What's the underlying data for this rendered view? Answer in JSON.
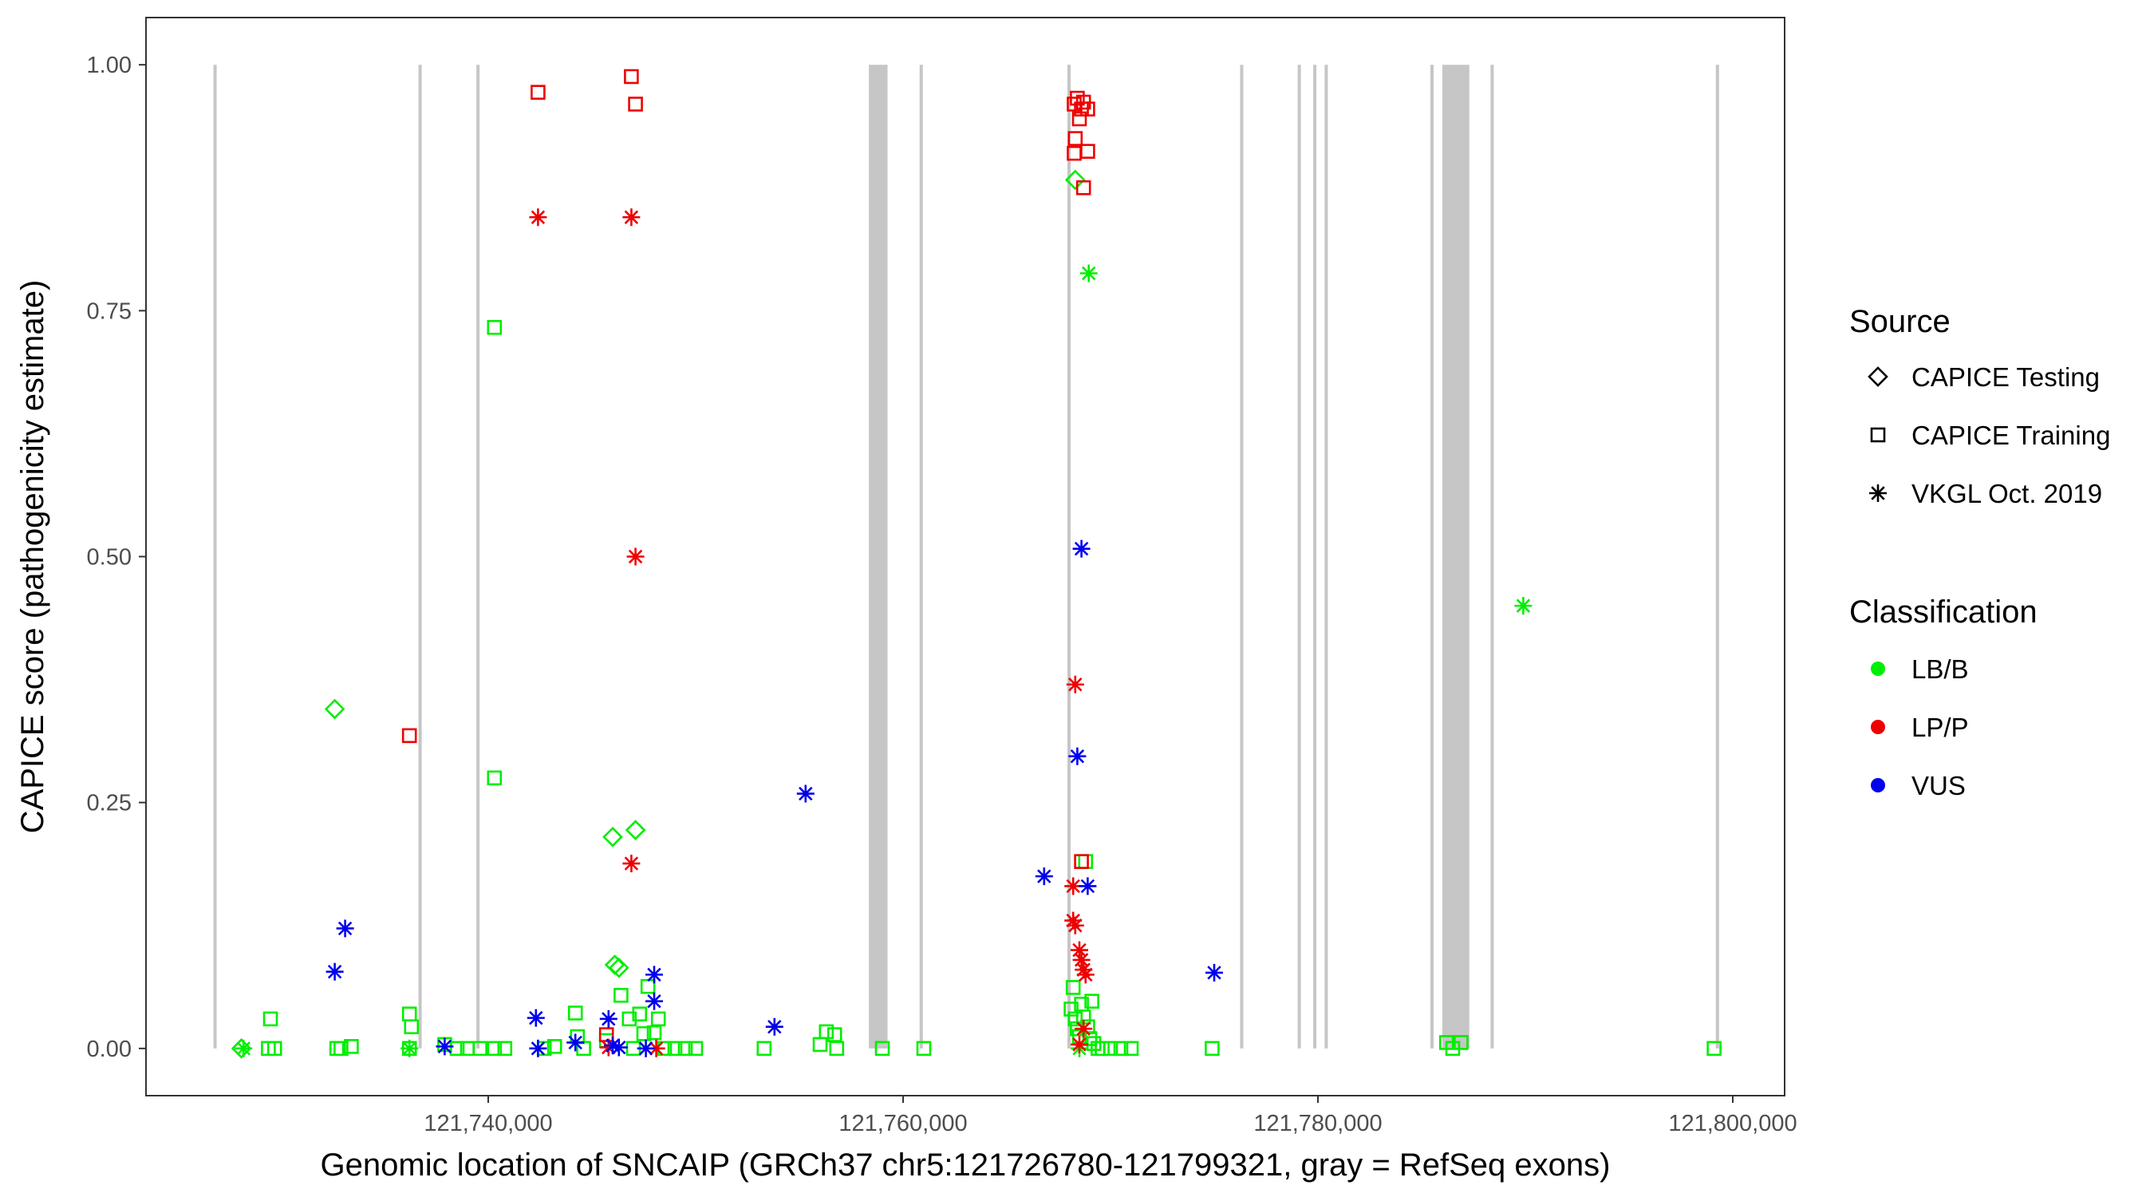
{
  "chart_data": {
    "type": "scatter",
    "xlabel": "Genomic location of SNCAIP (GRCh37 chr5:121726780-121799321, gray = RefSeq exons)",
    "ylabel": "CAPICE score (pathogenicity estimate)",
    "xlim": [
      121723500,
      121802500
    ],
    "ylim": [
      -0.048,
      1.048
    ],
    "x_ticks": [
      121740000,
      121760000,
      121780000,
      121800000
    ],
    "x_tick_labels": [
      "121,740,000",
      "121,760,000",
      "121,780,000",
      "121,800,000"
    ],
    "y_ticks": [
      0,
      0.25,
      0.5,
      0.75,
      1.0
    ],
    "y_tick_labels": [
      "0.00",
      "0.25",
      "0.50",
      "0.75",
      "1.00"
    ],
    "grid": false,
    "exons": [
      [
        121726780,
        121726880
      ],
      [
        121736650,
        121736780
      ],
      [
        121739450,
        121739560
      ],
      [
        121758350,
        121759250
      ],
      [
        121760800,
        121760950
      ],
      [
        121767950,
        121768050
      ],
      [
        121776250,
        121776400
      ],
      [
        121779050,
        121779150
      ],
      [
        121779800,
        121779900
      ],
      [
        121780350,
        121780450
      ],
      [
        121785450,
        121785550
      ],
      [
        121786000,
        121787300
      ],
      [
        121788350,
        121788450
      ],
      [
        121799200,
        121799321
      ]
    ],
    "exon_color": "#c6c6c6",
    "legend": {
      "position": "right",
      "source": {
        "title": "Source",
        "entries": [
          {
            "label": "CAPICE Testing",
            "shape": "diamond"
          },
          {
            "label": "CAPICE Training",
            "shape": "square"
          },
          {
            "label": "VKGL Oct. 2019",
            "shape": "asterisk"
          }
        ]
      },
      "classification": {
        "title": "Classification",
        "entries": [
          {
            "label": "LB/B",
            "color": "#00ee00"
          },
          {
            "label": "LP/P",
            "color": "#ee0000"
          },
          {
            "label": "VUS",
            "color": "#0000ee"
          }
        ]
      }
    },
    "series": [
      {
        "source": "CAPICE Testing",
        "classification": "LB/B",
        "points": [
          [
            121728100,
            0.0
          ],
          [
            121732600,
            0.345
          ],
          [
            121746000,
            0.215
          ],
          [
            121746100,
            0.085
          ],
          [
            121746300,
            0.082
          ],
          [
            121747100,
            0.222
          ],
          [
            121768300,
            0.883
          ]
        ]
      },
      {
        "source": "CAPICE Training",
        "classification": "LB/B",
        "points": [
          [
            121729500,
            0.03
          ],
          [
            121729400,
            0.0
          ],
          [
            121729700,
            0.0
          ],
          [
            121732700,
            0.0
          ],
          [
            121732900,
            0.0
          ],
          [
            121733400,
            0.002
          ],
          [
            121736200,
            0.035
          ],
          [
            121736300,
            0.022
          ],
          [
            121736200,
            0.0
          ],
          [
            121737900,
            0.004
          ],
          [
            121738500,
            0.0
          ],
          [
            121739000,
            0.0
          ],
          [
            121739600,
            0.0
          ],
          [
            121740300,
            0.0
          ],
          [
            121740800,
            0.0
          ],
          [
            121740300,
            0.733
          ],
          [
            121740300,
            0.275
          ],
          [
            121742700,
            0.0
          ],
          [
            121743200,
            0.002
          ],
          [
            121744200,
            0.036
          ],
          [
            121744300,
            0.012
          ],
          [
            121744600,
            0.0
          ],
          [
            121745700,
            0.008
          ],
          [
            121746400,
            0.054
          ],
          [
            121746800,
            0.03
          ],
          [
            121747000,
            0.0
          ],
          [
            121747300,
            0.035
          ],
          [
            121747500,
            0.015
          ],
          [
            121747700,
            0.063
          ],
          [
            121748000,
            0.016
          ],
          [
            121748200,
            0.03
          ],
          [
            121748500,
            0.0
          ],
          [
            121749000,
            0.0
          ],
          [
            121749500,
            0.0
          ],
          [
            121750000,
            0.0
          ],
          [
            121753300,
            0.0
          ],
          [
            121756000,
            0.004
          ],
          [
            121756300,
            0.017
          ],
          [
            121756700,
            0.014
          ],
          [
            121756800,
            0.0
          ],
          [
            121759000,
            0.0
          ],
          [
            121761000,
            0.0
          ],
          [
            121768100,
            0.04
          ],
          [
            121768200,
            0.062
          ],
          [
            121768300,
            0.03
          ],
          [
            121768400,
            0.02
          ],
          [
            121768500,
            0.012
          ],
          [
            121768600,
            0.045
          ],
          [
            121768700,
            0.032
          ],
          [
            121768800,
            0.19
          ],
          [
            121768900,
            0.022
          ],
          [
            121769000,
            0.01
          ],
          [
            121769100,
            0.048
          ],
          [
            121769200,
            0.005
          ],
          [
            121769400,
            0.0
          ],
          [
            121769600,
            0.0
          ],
          [
            121770000,
            0.0
          ],
          [
            121770500,
            0.0
          ],
          [
            121771000,
            0.0
          ],
          [
            121774900,
            0.0
          ],
          [
            121786200,
            0.006
          ],
          [
            121786500,
            0.0
          ],
          [
            121786900,
            0.006
          ],
          [
            121799100,
            0.0
          ]
        ]
      },
      {
        "source": "CAPICE Training",
        "classification": "LP/P",
        "points": [
          [
            121736200,
            0.318
          ],
          [
            121742400,
            0.972
          ],
          [
            121746900,
            0.988
          ],
          [
            121747100,
            0.96
          ],
          [
            121745700,
            0.014
          ],
          [
            121768250,
            0.96
          ],
          [
            121768400,
            0.966
          ],
          [
            121768500,
            0.945
          ],
          [
            121768600,
            0.955
          ],
          [
            121768700,
            0.962
          ],
          [
            121768900,
            0.955
          ],
          [
            121768300,
            0.925
          ],
          [
            121768250,
            0.91
          ],
          [
            121768900,
            0.912
          ],
          [
            121768700,
            0.875
          ],
          [
            121768600,
            0.19
          ]
        ]
      },
      {
        "source": "VKGL Oct. 2019",
        "classification": "LB/B",
        "points": [
          [
            121728200,
            0.0
          ],
          [
            121736200,
            0.0
          ],
          [
            121768950,
            0.788
          ],
          [
            121789900,
            0.45
          ],
          [
            121768500,
            0.0
          ]
        ]
      },
      {
        "source": "VKGL Oct. 2019",
        "classification": "LP/P",
        "points": [
          [
            121742400,
            0.845
          ],
          [
            121746900,
            0.845
          ],
          [
            121747100,
            0.5
          ],
          [
            121746900,
            0.188
          ],
          [
            121745800,
            0.001
          ],
          [
            121748100,
            0.0
          ],
          [
            121768300,
            0.37
          ],
          [
            121768200,
            0.165
          ],
          [
            121768200,
            0.13
          ],
          [
            121768300,
            0.125
          ],
          [
            121768500,
            0.1
          ],
          [
            121768600,
            0.09
          ],
          [
            121768700,
            0.08
          ],
          [
            121768800,
            0.075
          ],
          [
            121768700,
            0.02
          ],
          [
            121768500,
            0.004
          ]
        ]
      },
      {
        "source": "VKGL Oct. 2019",
        "classification": "VUS",
        "points": [
          [
            121732600,
            0.078
          ],
          [
            121733100,
            0.122
          ],
          [
            121737900,
            0.002
          ],
          [
            121742300,
            0.031
          ],
          [
            121742400,
            0.0
          ],
          [
            121744200,
            0.006
          ],
          [
            121745800,
            0.03
          ],
          [
            121746000,
            0.003
          ],
          [
            121746300,
            0.001
          ],
          [
            121748000,
            0.075
          ],
          [
            121748000,
            0.048
          ],
          [
            121747600,
            0.0
          ],
          [
            121753800,
            0.022
          ],
          [
            121755300,
            0.259
          ],
          [
            121766800,
            0.175
          ],
          [
            121768400,
            0.297
          ],
          [
            121768600,
            0.508
          ],
          [
            121768900,
            0.165
          ],
          [
            121775000,
            0.077
          ]
        ]
      }
    ]
  }
}
